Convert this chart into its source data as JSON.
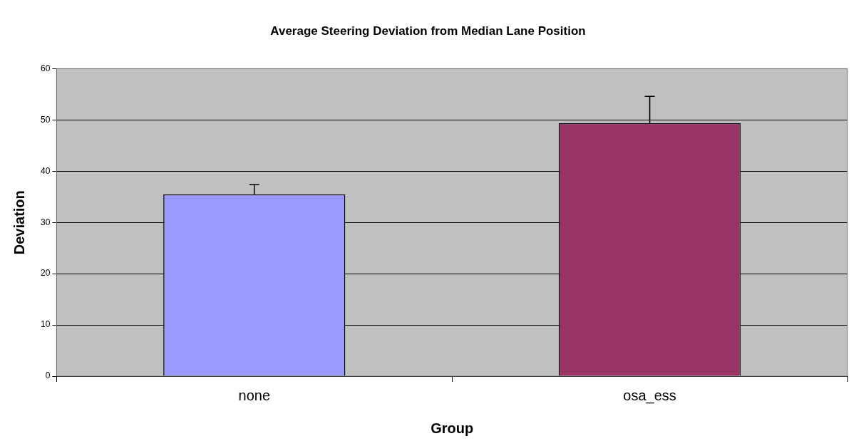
{
  "chart_data": {
    "type": "bar",
    "title": "Average Steering Deviation from Median Lane Position",
    "xlabel": "Group",
    "ylabel": "Deviation",
    "categories": [
      "none",
      "osa_ess"
    ],
    "values": [
      35.5,
      49.4
    ],
    "colors": [
      "#9999ff",
      "#993366"
    ],
    "errors": [
      [
        35.5,
        37.4
      ],
      [
        49.4,
        54.6
      ]
    ],
    "ylim": [
      0,
      60
    ],
    "yticks": [
      0,
      10,
      20,
      30,
      40,
      50,
      60
    ],
    "grid": "y",
    "legend": false
  }
}
